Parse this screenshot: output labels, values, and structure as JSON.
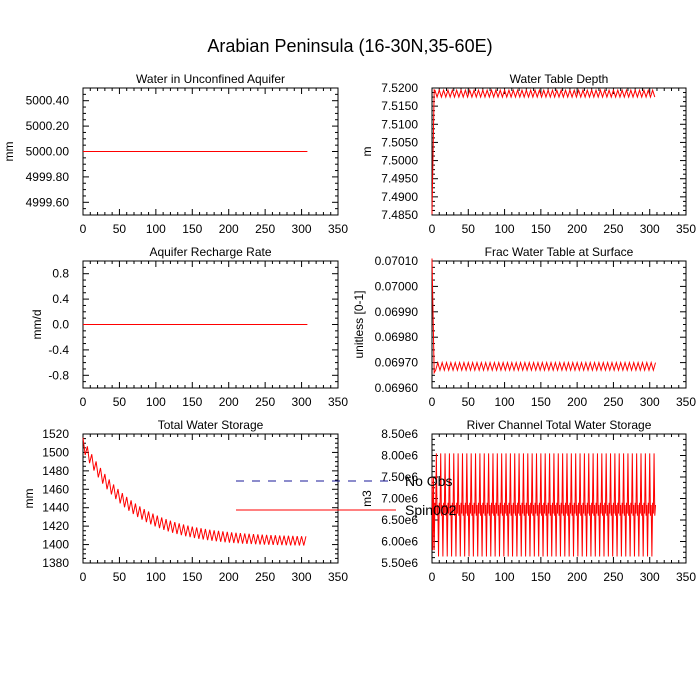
{
  "figure": {
    "title": "Arabian Peninsula (16-30N,35-60E)"
  },
  "colors": {
    "spin": "#ff0000",
    "noobs": "#1a1a99",
    "axis": "#000000"
  },
  "legend": {
    "entries": [
      {
        "label": "No Obs",
        "style": "dashed",
        "color": "#1a1a99"
      },
      {
        "label": "Spin002",
        "style": "solid",
        "color": "#ff0000"
      }
    ]
  },
  "chart_data": [
    {
      "type": "line",
      "title": "Water in Unconfined Aquifer",
      "ylabel": "mm",
      "xlim": [
        0,
        350
      ],
      "ylim": [
        4999.5,
        5000.5
      ],
      "xticks": [
        0,
        50,
        100,
        150,
        200,
        250,
        300,
        350
      ],
      "xtick_labels": [
        "0",
        "50",
        "100",
        "150",
        "200",
        "250",
        "300",
        "350"
      ],
      "yticks": [
        4999.6,
        4999.8,
        5000.0,
        5000.2,
        5000.4
      ],
      "ytick_labels": [
        "4999.60",
        "4999.80",
        "5000.00",
        "5000.20",
        "5000.40"
      ],
      "series": [
        {
          "name": "Spin002",
          "x": [
            0,
            308
          ],
          "y": [
            5000.0,
            5000.0
          ]
        }
      ]
    },
    {
      "type": "line",
      "title": "Water Table Depth",
      "ylabel": "m",
      "xlim": [
        0,
        350
      ],
      "ylim": [
        7.485,
        7.52
      ],
      "xticks": [
        0,
        50,
        100,
        150,
        200,
        250,
        300,
        350
      ],
      "xtick_labels": [
        "0",
        "50",
        "100",
        "150",
        "200",
        "250",
        "300",
        "350"
      ],
      "yticks": [
        7.485,
        7.49,
        7.495,
        7.5,
        7.505,
        7.51,
        7.515,
        7.52
      ],
      "ytick_labels": [
        "7.4850",
        "7.4900",
        "7.4950",
        "7.5000",
        "7.5050",
        "7.5100",
        "7.5150",
        "7.5200"
      ],
      "series": [
        {
          "name": "Spin002",
          "generator": "wtd"
        }
      ]
    },
    {
      "type": "line",
      "title": "Aquifer Recharge Rate",
      "ylabel": "mm/d",
      "xlim": [
        0,
        350
      ],
      "ylim": [
        -1.0,
        1.0
      ],
      "xticks": [
        0,
        50,
        100,
        150,
        200,
        250,
        300,
        350
      ],
      "xtick_labels": [
        "0",
        "50",
        "100",
        "150",
        "200",
        "250",
        "300",
        "350"
      ],
      "yticks": [
        -0.8,
        -0.4,
        0.0,
        0.4,
        0.8
      ],
      "ytick_labels": [
        "-0.8",
        "-0.4",
        "0.0",
        "0.4",
        "0.8"
      ],
      "series": [
        {
          "name": "Spin002",
          "x": [
            0,
            308
          ],
          "y": [
            0.0,
            0.0
          ]
        }
      ]
    },
    {
      "type": "line",
      "title": "Frac Water Table at Surface",
      "ylabel": "unitless [0-1]",
      "xlim": [
        0,
        350
      ],
      "ylim": [
        0.0696,
        0.0701
      ],
      "xticks": [
        0,
        50,
        100,
        150,
        200,
        250,
        300,
        350
      ],
      "xtick_labels": [
        "0",
        "50",
        "100",
        "150",
        "200",
        "250",
        "300",
        "350"
      ],
      "yticks": [
        0.0696,
        0.0697,
        0.0698,
        0.0699,
        0.07,
        0.0701
      ],
      "ytick_labels": [
        "0.06960",
        "0.06970",
        "0.06980",
        "0.06990",
        "0.07000",
        "0.07010"
      ],
      "series": [
        {
          "name": "Spin002",
          "generator": "frac"
        }
      ]
    },
    {
      "type": "line",
      "title": "Total Water Storage",
      "ylabel": "mm",
      "xlim": [
        0,
        350
      ],
      "ylim": [
        1380,
        1520
      ],
      "xticks": [
        0,
        50,
        100,
        150,
        200,
        250,
        300,
        350
      ],
      "xtick_labels": [
        "0",
        "50",
        "100",
        "150",
        "200",
        "250",
        "300",
        "350"
      ],
      "yticks": [
        1380,
        1400,
        1420,
        1440,
        1460,
        1480,
        1500,
        1520
      ],
      "ytick_labels": [
        "1380",
        "1400",
        "1420",
        "1440",
        "1460",
        "1480",
        "1500",
        "1520"
      ],
      "series": [
        {
          "name": "Spin002",
          "generator": "tws"
        }
      ]
    },
    {
      "type": "line",
      "title": "River Channel Total Water Storage",
      "ylabel": "m3",
      "xlim": [
        0,
        350
      ],
      "ylim": [
        5500000,
        8500000
      ],
      "xticks": [
        0,
        50,
        100,
        150,
        200,
        250,
        300,
        350
      ],
      "xtick_labels": [
        "0",
        "50",
        "100",
        "150",
        "200",
        "250",
        "300",
        "350"
      ],
      "yticks": [
        5500000,
        6000000,
        6500000,
        7000000,
        7500000,
        8000000,
        8500000
      ],
      "ytick_labels": [
        "5.50e6",
        "6.00e6",
        "6.50e6",
        "7.00e6",
        "7.50e6",
        "8.00e6",
        "8.50e6"
      ],
      "series": [
        {
          "name": "Spin002",
          "generator": "river"
        }
      ]
    }
  ]
}
